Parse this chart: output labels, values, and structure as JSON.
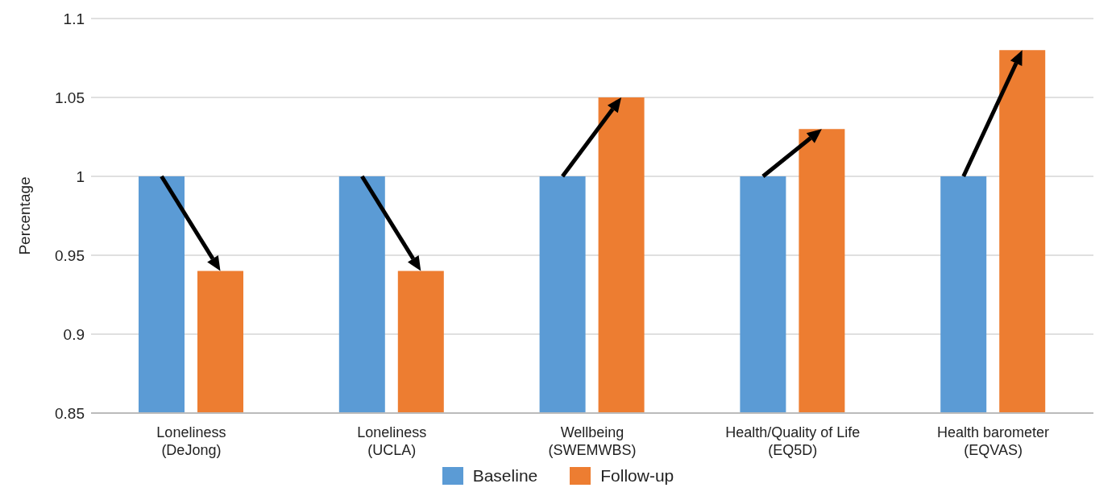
{
  "chart_data": {
    "type": "bar",
    "ylabel": "Percentage",
    "categories": [
      "Loneliness\n(DeJong)",
      "Loneliness\n(UCLA)",
      "Wellbeing\n(SWEMWBS)",
      "Health/Quality of Life\n(EQ5D)",
      "Health barometer\n(EQVAS)"
    ],
    "series": [
      {
        "name": "Baseline",
        "color": "#5b9bd5",
        "values": [
          1,
          1,
          1,
          1,
          1
        ]
      },
      {
        "name": "Follow-up",
        "color": "#ed7d31",
        "values": [
          0.94,
          0.94,
          1.05,
          1.03,
          1.08
        ]
      }
    ],
    "ylim": [
      0.85,
      1.1
    ],
    "yticks": [
      0.85,
      0.9,
      0.95,
      1,
      1.05,
      1.1
    ],
    "grid": "y",
    "legend": "bottom"
  }
}
